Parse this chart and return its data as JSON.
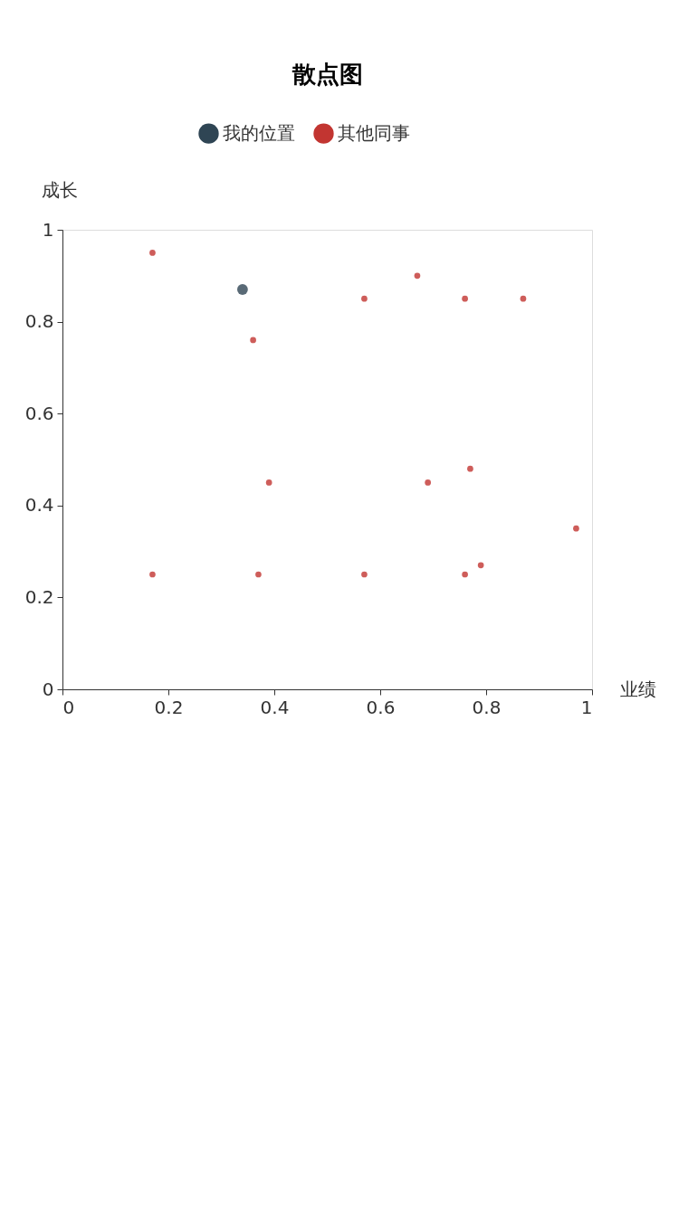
{
  "chart_data": {
    "type": "scatter",
    "title": "散点图",
    "xlabel": "业绩",
    "ylabel": "成长",
    "xlim": [
      0,
      1
    ],
    "ylim": [
      0,
      1
    ],
    "xticks": [
      0,
      0.2,
      0.4,
      0.6,
      0.8,
      1
    ],
    "yticks": [
      0,
      0.2,
      0.4,
      0.6,
      0.8,
      1
    ],
    "grid": false,
    "legend": "top",
    "marker": "circle",
    "series": [
      {
        "name": "我的位置",
        "color": "#2f4554",
        "x": [
          0.34
        ],
        "values": [
          0.87
        ]
      },
      {
        "name": "其他同事",
        "color": "#c23531",
        "x": [
          0.17,
          0.36,
          0.57,
          0.67,
          0.76,
          0.87,
          0.39,
          0.69,
          0.77,
          0.97,
          0.17,
          0.37,
          0.57,
          0.76,
          0.79
        ],
        "values": [
          0.95,
          0.76,
          0.85,
          0.9,
          0.85,
          0.85,
          0.45,
          0.45,
          0.48,
          0.35,
          0.25,
          0.25,
          0.25,
          0.25,
          0.27
        ]
      }
    ]
  }
}
